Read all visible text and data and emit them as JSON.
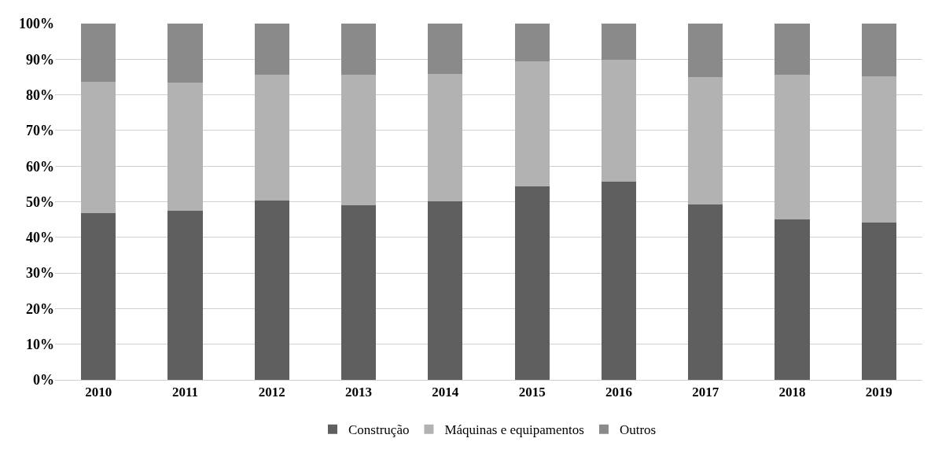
{
  "chart_data": {
    "type": "bar",
    "stacked": true,
    "categories": [
      "2010",
      "2011",
      "2012",
      "2013",
      "2014",
      "2015",
      "2016",
      "2017",
      "2018",
      "2019"
    ],
    "series": [
      {
        "name": "Construção",
        "color": "#5f5f5f",
        "values": [
          46.8,
          47.5,
          50.3,
          49.1,
          50.2,
          54.2,
          55.7,
          49.3,
          45.1,
          44.2
        ]
      },
      {
        "name": "Máquinas e equipamentos",
        "color": "#b2b2b2",
        "values": [
          36.9,
          36.0,
          35.3,
          36.6,
          35.6,
          35.2,
          34.2,
          35.6,
          40.6,
          41.0
        ]
      },
      {
        "name": "Outros",
        "color": "#8a8a8a",
        "values": [
          16.3,
          16.5,
          14.4,
          14.3,
          14.2,
          10.6,
          10.1,
          15.1,
          14.3,
          14.8
        ]
      }
    ],
    "ylim": [
      0,
      100
    ],
    "yticks": [
      {
        "value": 0,
        "label": "0%"
      },
      {
        "value": 10,
        "label": "10%"
      },
      {
        "value": 20,
        "label": "20%"
      },
      {
        "value": 30,
        "label": "30%"
      },
      {
        "value": 40,
        "label": "40%"
      },
      {
        "value": 50,
        "label": "50%"
      },
      {
        "value": 60,
        "label": "60%"
      },
      {
        "value": 70,
        "label": "70%"
      },
      {
        "value": 80,
        "label": "80%"
      },
      {
        "value": 90,
        "label": "90%"
      },
      {
        "value": 100,
        "label": "100%"
      }
    ],
    "grid": "y",
    "legend": "bottom"
  }
}
